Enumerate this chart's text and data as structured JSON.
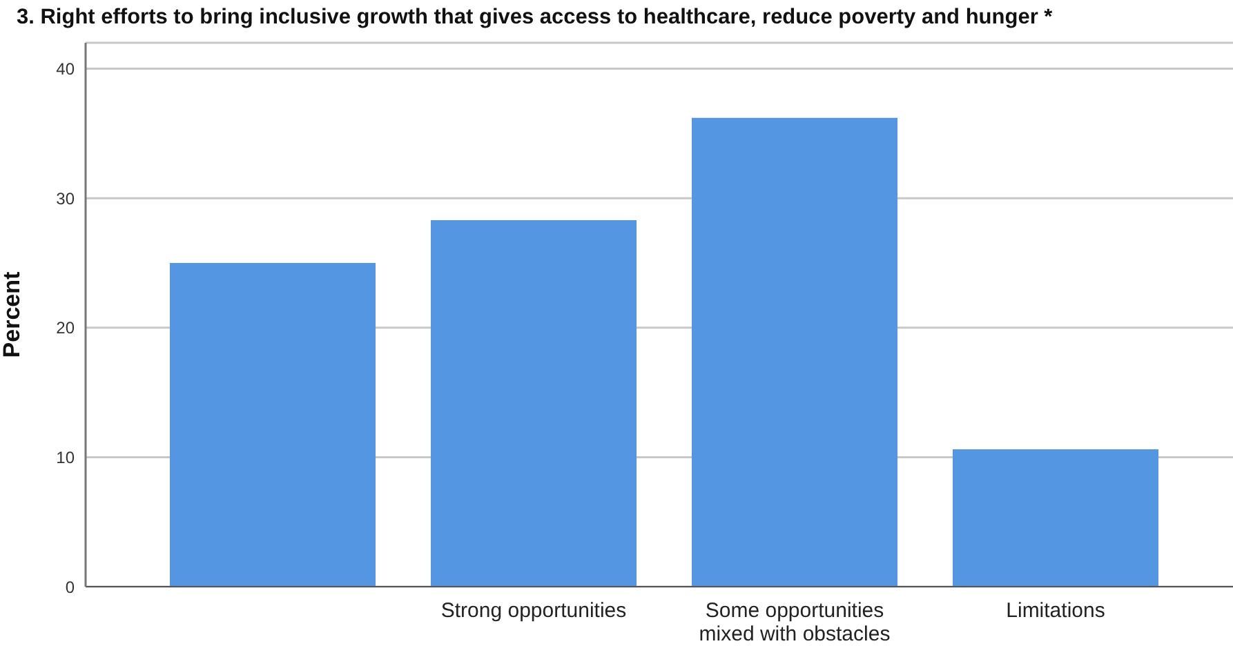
{
  "chart_data": {
    "type": "bar",
    "title": "3. Right efforts to bring inclusive growth that gives access to healthcare, reduce poverty and hunger *",
    "ylabel": "Percent",
    "categories": [
      null,
      "Strong opportunities",
      "Some opportunities mixed with obstacles",
      "Limitations"
    ],
    "values": [
      25.0,
      28.3,
      36.2,
      10.6
    ],
    "color": "#5596e3",
    "ylim": [
      0,
      42
    ],
    "yticks": [
      0,
      10,
      20,
      30,
      40
    ],
    "grid": "y"
  }
}
